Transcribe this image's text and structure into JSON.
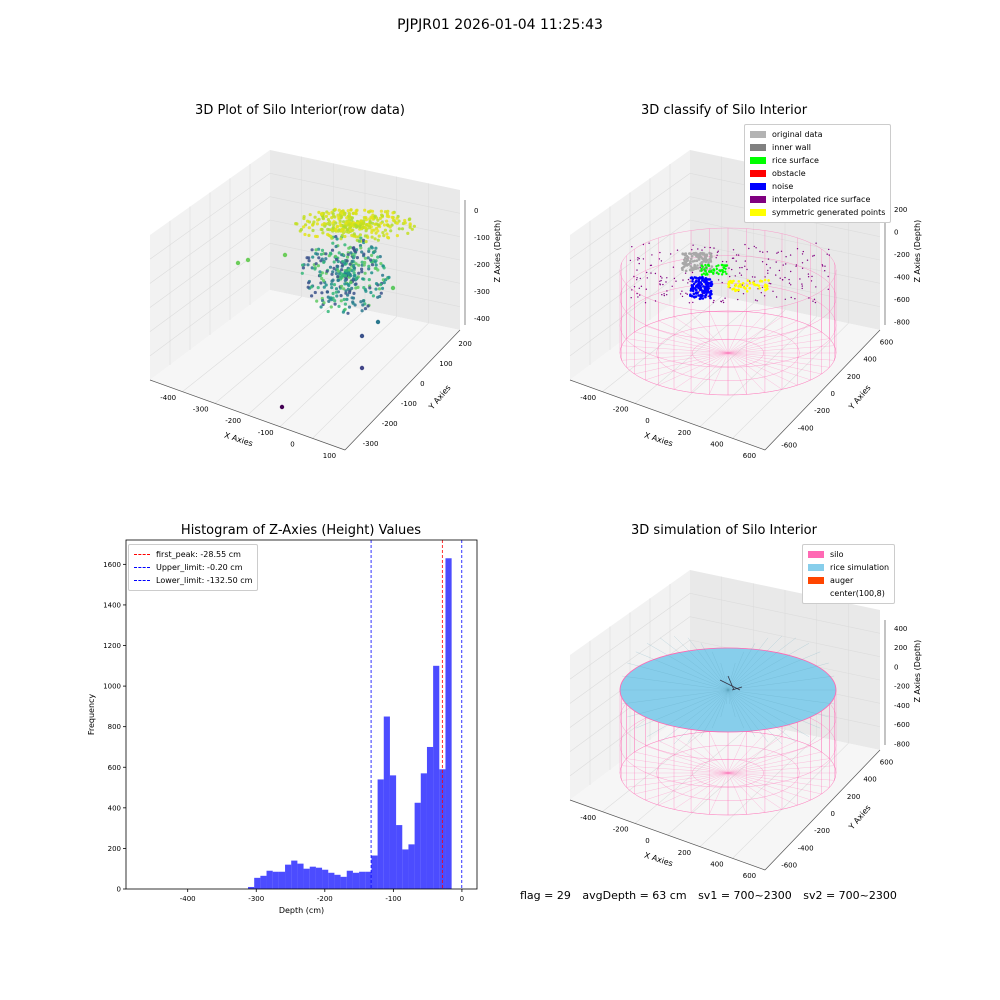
{
  "figure": {
    "suptitle": "PJPJR01 2026-01-04 11:25:43"
  },
  "panel_raw": {
    "title": "3D Plot of Silo Interior(row data)",
    "xlabel": "X Axies",
    "ylabel": "Y Axies",
    "zlabel": "Z Axies (Depth)",
    "xticks": [
      "-400",
      "-300",
      "-200",
      "-100",
      "0",
      "100"
    ],
    "yticks": [
      "-300",
      "-200",
      "-100",
      "0",
      "100",
      "200"
    ],
    "zticks": [
      "0",
      "-100",
      "-200",
      "-300",
      "-400"
    ]
  },
  "panel_classify": {
    "title": "3D classify of Silo Interior",
    "xlabel": "X Axies",
    "ylabel": "Y Axies",
    "zlabel": "Z Axies (Depth)",
    "xticks": [
      "-400",
      "-200",
      "0",
      "200",
      "400",
      "600"
    ],
    "yticks": [
      "-600",
      "-400",
      "-200",
      "0",
      "200",
      "400",
      "600"
    ],
    "zticks": [
      "200",
      "0",
      "-200",
      "-400",
      "-600",
      "-800"
    ],
    "legend": [
      {
        "label": "original data",
        "color": "#b3b3b3"
      },
      {
        "label": "inner wall",
        "color": "#808080"
      },
      {
        "label": "rice surface",
        "color": "#00ff00"
      },
      {
        "label": "obstacle",
        "color": "#ff0000"
      },
      {
        "label": "noise",
        "color": "#0000ff"
      },
      {
        "label": "interpolated rice surface",
        "color": "#800080"
      },
      {
        "label": "symmetric generated points",
        "color": "#ffff00"
      }
    ]
  },
  "panel_sim": {
    "title": "3D simulation of Silo Interior",
    "xlabel": "X Axies",
    "ylabel": "Y Axies",
    "zlabel": "Z Axies (Depth)",
    "xticks": [
      "-400",
      "-200",
      "0",
      "200",
      "400",
      "600"
    ],
    "yticks": [
      "-600",
      "-400",
      "-200",
      "0",
      "200",
      "400",
      "600"
    ],
    "zticks": [
      "400",
      "200",
      "0",
      "-200",
      "-400",
      "-600",
      "-800"
    ],
    "legend": [
      {
        "label": "silo",
        "color": "#ff69b4"
      },
      {
        "label": "rice simulation",
        "color": "#87ceeb"
      },
      {
        "label": "auger",
        "color": "#ff4500"
      },
      {
        "label": "center(100,8)",
        "color": "#ffffff"
      }
    ]
  },
  "footer": {
    "flag": "flag = 29",
    "avg": "avgDepth = 63 cm",
    "sv1": "sv1 = 700~2300",
    "sv2": "sv2 = 700~2300"
  },
  "chart_data": {
    "type": "bar",
    "title": "Histogram of Z-Axies (Height) Values",
    "xlabel": "Depth (cm)",
    "ylabel": "Frequency",
    "xlim": [
      -490,
      22
    ],
    "ylim": [
      0,
      1720
    ],
    "xticks": [
      -400,
      -300,
      -200,
      -100,
      0
    ],
    "yticks": [
      0,
      200,
      400,
      600,
      800,
      1000,
      1200,
      1400,
      1600
    ],
    "bin_width": 9,
    "bin_start": -312,
    "values": [
      10,
      55,
      65,
      90,
      85,
      85,
      120,
      140,
      125,
      100,
      110,
      105,
      95,
      80,
      70,
      60,
      90,
      80,
      85,
      85,
      165,
      540,
      850,
      560,
      315,
      195,
      220,
      425,
      570,
      700,
      1100,
      590,
      1630
    ],
    "bar_color": "#0000ff",
    "bar_alpha": 0.7,
    "vlines": [
      {
        "x": -28.55,
        "color": "#ff0000",
        "label": "first_peak: -28.55 cm"
      },
      {
        "x": -0.2,
        "color": "#0000ff",
        "label": "Upper_limit: -0.20 cm"
      },
      {
        "x": -132.5,
        "color": "#0000ff",
        "label": "Lower_limit: -132.50 cm"
      }
    ],
    "legend_position": "upper-left"
  }
}
